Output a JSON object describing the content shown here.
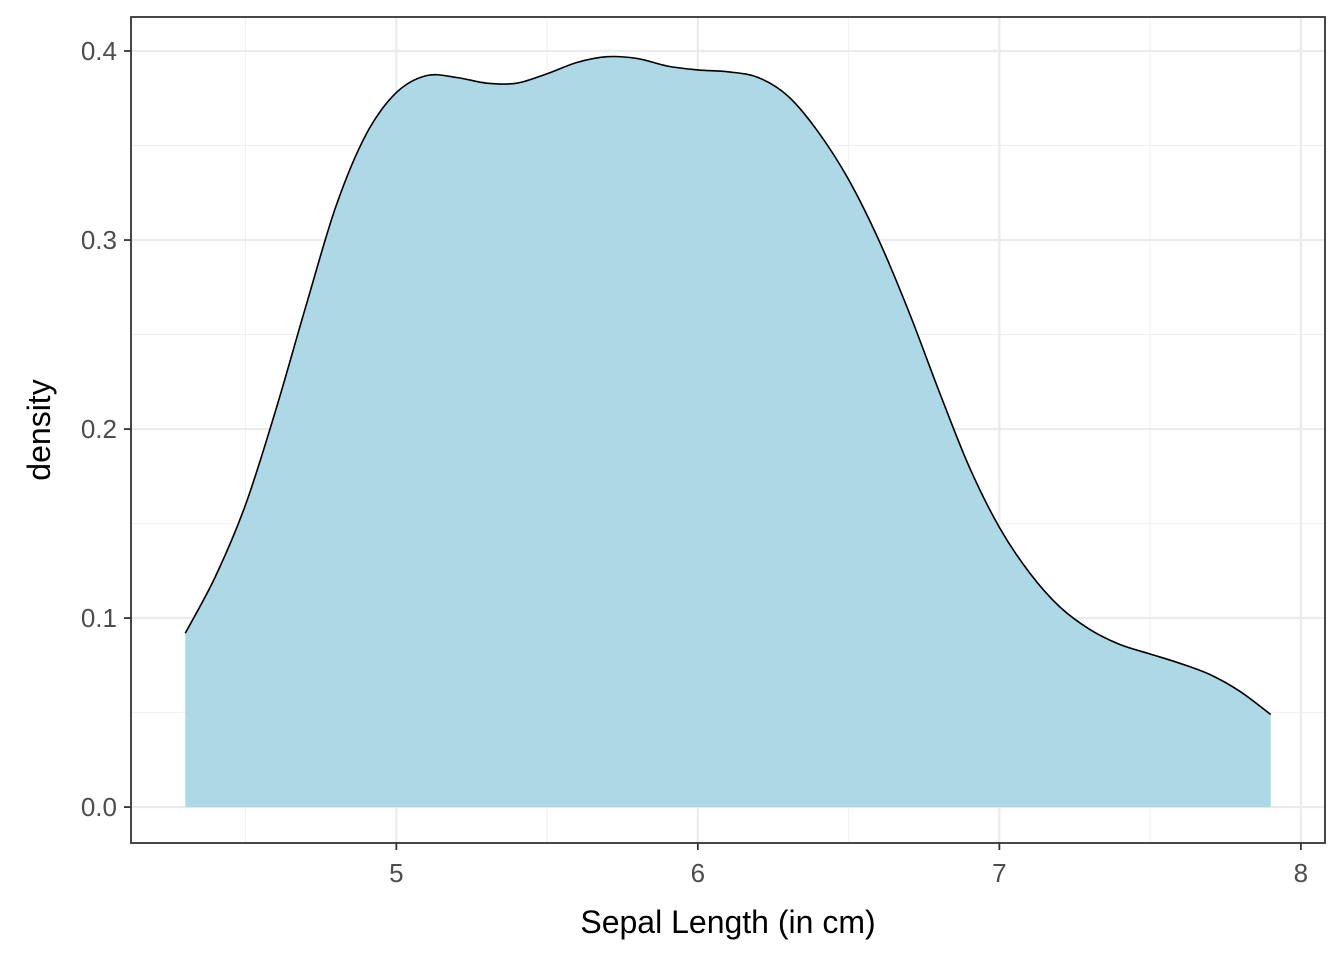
{
  "chart_data": {
    "type": "area",
    "title": "",
    "xlabel": "Sepal Length (in cm)",
    "ylabel": "density",
    "xlim": [
      4.12,
      8.08
    ],
    "ylim": [
      -0.019,
      0.418
    ],
    "x_ticks": [
      5,
      6,
      7,
      8
    ],
    "x_tick_labels": [
      "5",
      "6",
      "7",
      "8"
    ],
    "y_ticks": [
      0.0,
      0.1,
      0.2,
      0.3,
      0.4
    ],
    "y_tick_labels": [
      "0.0",
      "0.1",
      "0.2",
      "0.3",
      "0.4"
    ],
    "grid": true,
    "legend": "none",
    "fill_color": "#add8e6",
    "line_color": "#000000",
    "series": [
      {
        "x": [
          4.3,
          4.4,
          4.5,
          4.6,
          4.7,
          4.8,
          4.9,
          5.0,
          5.1,
          5.2,
          5.3,
          5.4,
          5.5,
          5.6,
          5.7,
          5.8,
          5.9,
          6.0,
          6.1,
          6.2,
          6.3,
          6.4,
          6.5,
          6.6,
          6.7,
          6.8,
          6.9,
          7.0,
          7.1,
          7.2,
          7.3,
          7.4,
          7.5,
          7.6,
          7.7,
          7.8,
          7.9
        ],
        "y": [
          0.092,
          0.122,
          0.16,
          0.21,
          0.265,
          0.318,
          0.356,
          0.378,
          0.387,
          0.386,
          0.383,
          0.383,
          0.388,
          0.394,
          0.397,
          0.396,
          0.392,
          0.39,
          0.389,
          0.386,
          0.376,
          0.357,
          0.332,
          0.3,
          0.262,
          0.22,
          0.18,
          0.148,
          0.124,
          0.106,
          0.094,
          0.086,
          0.081,
          0.076,
          0.07,
          0.061,
          0.049
        ]
      }
    ]
  }
}
